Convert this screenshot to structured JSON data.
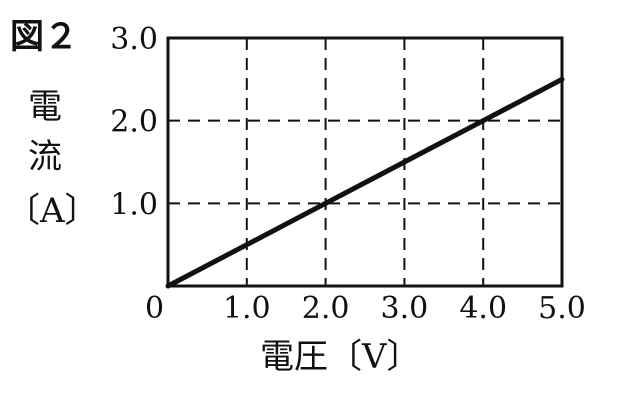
{
  "figure_label": "図２",
  "chart_data": {
    "type": "line",
    "xlabel": "電圧〔V〕",
    "ylabel_lines": [
      "電",
      "流",
      "〔A〕"
    ],
    "xlim": [
      0,
      5.0
    ],
    "ylim": [
      0,
      3.0
    ],
    "origin_label": "0",
    "x_ticks": [
      {
        "value": 1.0,
        "label": "1.0"
      },
      {
        "value": 2.0,
        "label": "2.0"
      },
      {
        "value": 3.0,
        "label": "3.0"
      },
      {
        "value": 4.0,
        "label": "4.0"
      },
      {
        "value": 5.0,
        "label": "5.0"
      }
    ],
    "y_ticks": [
      {
        "value": 1.0,
        "label": "1.0"
      },
      {
        "value": 2.0,
        "label": "2.0"
      },
      {
        "value": 3.0,
        "label": "3.0"
      }
    ],
    "grid": true,
    "series": [
      {
        "x": [
          0,
          1.0,
          2.0,
          3.0,
          4.0,
          5.0
        ],
        "y": [
          0,
          0.5,
          1.0,
          1.5,
          2.0,
          2.5
        ]
      }
    ]
  }
}
